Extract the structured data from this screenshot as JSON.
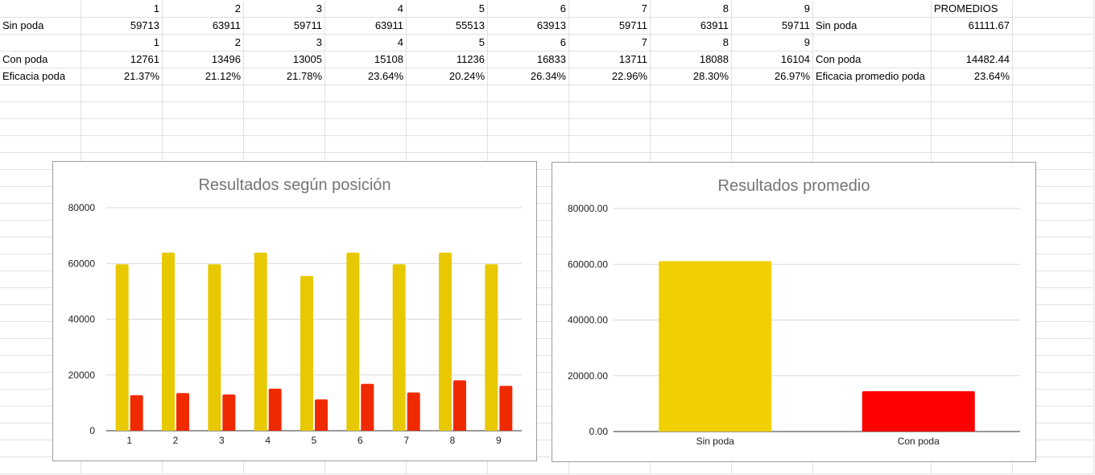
{
  "sheet": {
    "rows": [
      [
        "",
        "1",
        "2",
        "3",
        "4",
        "5",
        "6",
        "7",
        "8",
        "9",
        "",
        "PROMEDIOS"
      ],
      [
        "Sin poda",
        "59713",
        "63911",
        "59711",
        "63911",
        "55513",
        "63913",
        "59711",
        "63911",
        "59711",
        "Sin poda",
        "61111.67"
      ],
      [
        "",
        "1",
        "2",
        "3",
        "4",
        "5",
        "6",
        "7",
        "8",
        "9",
        "",
        ""
      ],
      [
        "Con poda",
        "12761",
        "13496",
        "13005",
        "15108",
        "11236",
        "16833",
        "13711",
        "18088",
        "16104",
        "Con poda",
        "14482.44"
      ],
      [
        "Eficacia poda",
        "21.37%",
        "21.12%",
        "21.78%",
        "23.64%",
        "20.24%",
        "26.34%",
        "22.96%",
        "28.30%",
        "26.97%",
        "Eficacia promedio poda",
        "23.64%"
      ]
    ]
  },
  "chart_data": [
    {
      "type": "bar",
      "title": "Resultados según posición",
      "categories": [
        "1",
        "2",
        "3",
        "4",
        "5",
        "6",
        "7",
        "8",
        "9"
      ],
      "series": [
        {
          "values": [
            59713,
            63911,
            59711,
            63911,
            55513,
            63913,
            59711,
            63911,
            59711
          ],
          "color": "#e8c800"
        },
        {
          "values": [
            12761,
            13496,
            13005,
            15108,
            11236,
            16833,
            13711,
            18088,
            16104
          ],
          "color": "#f02a00"
        }
      ],
      "ylim": [
        0,
        80000
      ],
      "yticks": [
        "0",
        "20000",
        "40000",
        "60000",
        "80000"
      ],
      "grid": true
    },
    {
      "type": "bar",
      "title": "Resultados promedio",
      "categories": [
        "Sin poda",
        "Con poda"
      ],
      "values": [
        61111.67,
        14482.44
      ],
      "colors": [
        "#f0d000",
        "#ff0000"
      ],
      "ylim": [
        0,
        80000
      ],
      "yticks": [
        "0.00",
        "20000.00",
        "40000.00",
        "60000.00",
        "80000.00"
      ],
      "grid": true
    }
  ]
}
